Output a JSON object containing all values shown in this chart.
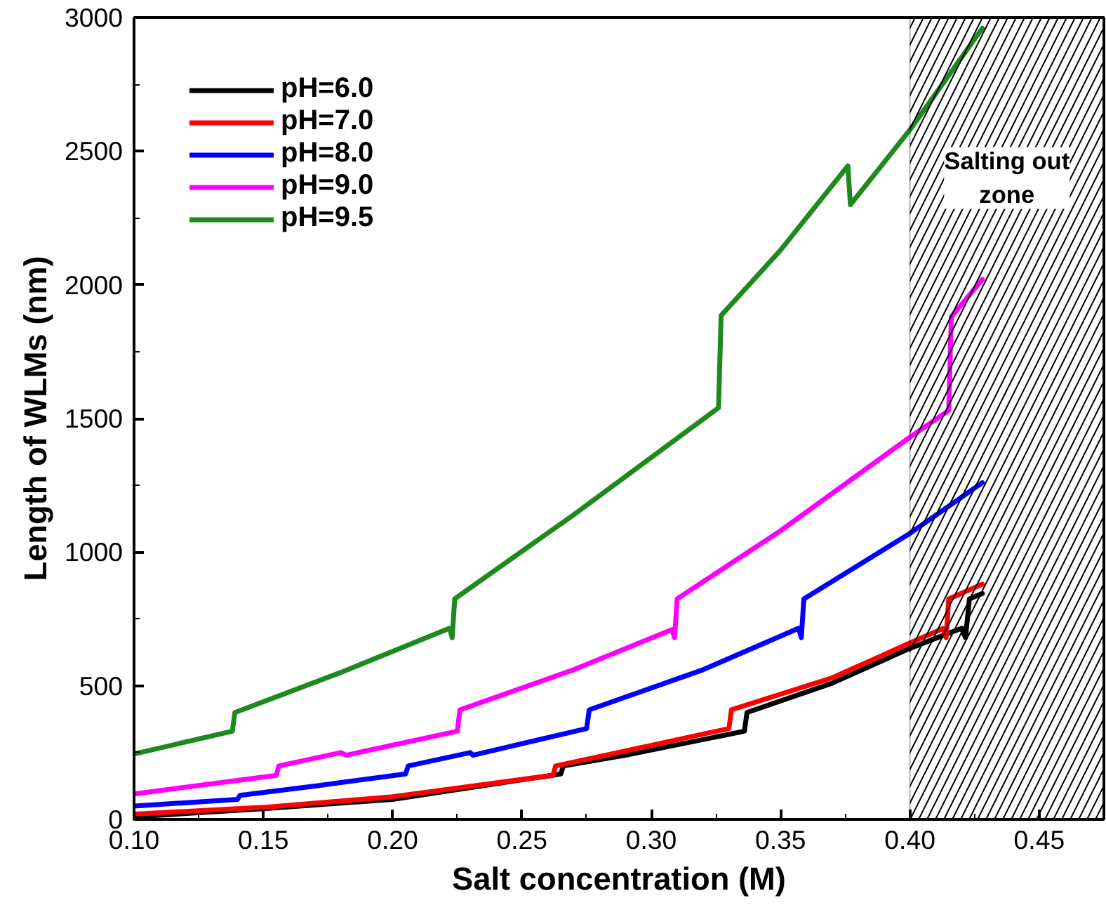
{
  "chart_data": {
    "type": "line",
    "xlabel": "Salt concentration (M)",
    "ylabel": "Length of WLMs (nm)",
    "xlim": [
      0.1,
      0.475
    ],
    "ylim": [
      0,
      3000
    ],
    "xticks": [
      {
        "value": 0.1,
        "label": "0.10"
      },
      {
        "value": 0.15,
        "label": "0.15"
      },
      {
        "value": 0.2,
        "label": "0.20"
      },
      {
        "value": 0.25,
        "label": "0.25"
      },
      {
        "value": 0.3,
        "label": "0.30"
      },
      {
        "value": 0.35,
        "label": "0.35"
      },
      {
        "value": 0.4,
        "label": "0.40"
      },
      {
        "value": 0.45,
        "label": "0.45"
      }
    ],
    "yticks": [
      0,
      500,
      1000,
      1500,
      2000,
      2500,
      3000
    ],
    "grid": false,
    "legend": "top left",
    "marker": "none",
    "line_style": "solid",
    "bands": [
      {
        "axis": "x",
        "from": 0.4,
        "to": 0.475,
        "label": "Salting out\nzone",
        "color": "#000000"
      }
    ],
    "series": [
      {
        "name": "pH=6.0",
        "color": "#000000",
        "x": [
          0.1,
          0.15,
          0.2,
          0.265,
          0.266,
          0.29,
          0.336,
          0.337,
          0.37,
          0.4,
          0.42,
          0.4215,
          0.423,
          0.428
        ],
        "values": [
          10,
          40,
          75,
          170,
          200,
          240,
          330,
          400,
          510,
          640,
          715,
          680,
          825,
          845
        ]
      },
      {
        "name": "pH=7.0",
        "color": "#ff0000",
        "x": [
          0.1,
          0.15,
          0.2,
          0.262,
          0.263,
          0.287,
          0.33,
          0.331,
          0.37,
          0.4,
          0.413,
          0.414,
          0.415,
          0.428
        ],
        "values": [
          20,
          45,
          85,
          165,
          200,
          250,
          340,
          410,
          530,
          660,
          715,
          680,
          825,
          880
        ]
      },
      {
        "name": "pH=8.0",
        "color": "#0000ff",
        "x": [
          0.1,
          0.14,
          0.141,
          0.17,
          0.205,
          0.206,
          0.23,
          0.231,
          0.275,
          0.276,
          0.32,
          0.357,
          0.358,
          0.359,
          0.4,
          0.428
        ],
        "values": [
          50,
          75,
          90,
          125,
          170,
          200,
          250,
          240,
          340,
          410,
          560,
          715,
          680,
          825,
          1070,
          1260
        ]
      },
      {
        "name": "pH=9.0",
        "color": "#ff00ff",
        "x": [
          0.1,
          0.155,
          0.156,
          0.18,
          0.182,
          0.225,
          0.226,
          0.27,
          0.308,
          0.309,
          0.31,
          0.35,
          0.4,
          0.415,
          0.416,
          0.428
        ],
        "values": [
          95,
          165,
          200,
          250,
          240,
          330,
          410,
          560,
          710,
          680,
          825,
          1080,
          1430,
          1530,
          1880,
          2020
        ]
      },
      {
        "name": "pH=9.5",
        "color": "#1e8a1e",
        "x": [
          0.1,
          0.138,
          0.139,
          0.18,
          0.222,
          0.223,
          0.224,
          0.27,
          0.326,
          0.327,
          0.35,
          0.376,
          0.377,
          0.4,
          0.428
        ],
        "values": [
          245,
          330,
          400,
          550,
          715,
          680,
          825,
          1140,
          1540,
          1885,
          2130,
          2445,
          2300,
          2580,
          2960
        ]
      }
    ]
  }
}
